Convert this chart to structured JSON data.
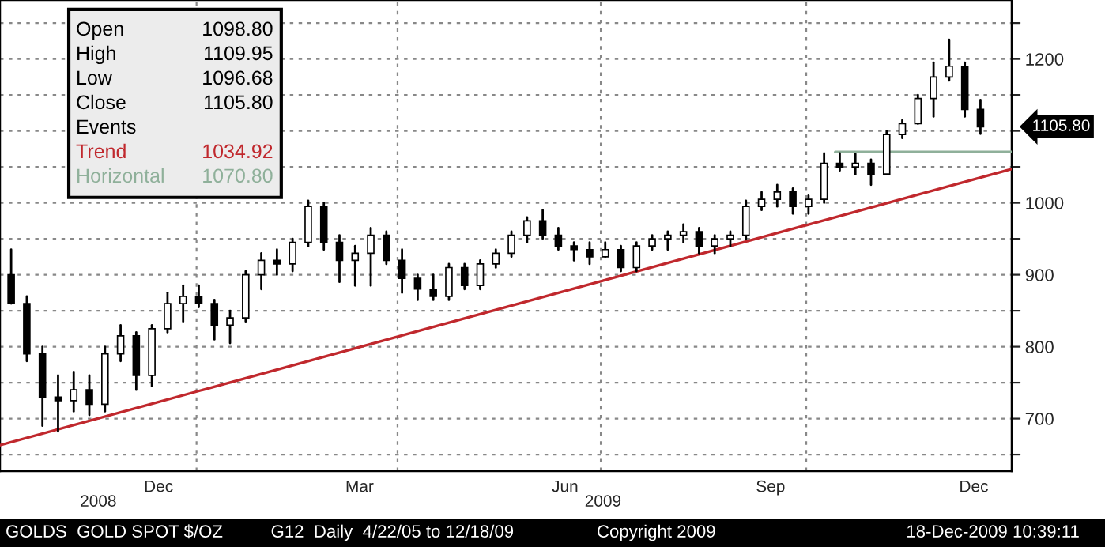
{
  "chart_data": {
    "type": "candlestick",
    "x": [
      "2008-10-10",
      "2008-10-17",
      "2008-10-24",
      "2008-10-31",
      "2008-11-07",
      "2008-11-14",
      "2008-11-21",
      "2008-11-28",
      "2008-12-05",
      "2008-12-12",
      "2008-12-19",
      "2008-12-26",
      "2009-01-02",
      "2009-01-09",
      "2009-01-16",
      "2009-01-23",
      "2009-01-30",
      "2009-02-06",
      "2009-02-13",
      "2009-02-20",
      "2009-02-27",
      "2009-03-06",
      "2009-03-13",
      "2009-03-20",
      "2009-03-27",
      "2009-04-03",
      "2009-04-10",
      "2009-04-17",
      "2009-04-24",
      "2009-05-01",
      "2009-05-08",
      "2009-05-15",
      "2009-05-22",
      "2009-05-29",
      "2009-06-05",
      "2009-06-12",
      "2009-06-19",
      "2009-06-26",
      "2009-07-03",
      "2009-07-10",
      "2009-07-17",
      "2009-07-24",
      "2009-07-31",
      "2009-08-07",
      "2009-08-14",
      "2009-08-21",
      "2009-08-28",
      "2009-09-04",
      "2009-09-11",
      "2009-09-18",
      "2009-09-25",
      "2009-10-02",
      "2009-10-09",
      "2009-10-16",
      "2009-10-23",
      "2009-10-30",
      "2009-11-06",
      "2009-11-13",
      "2009-11-20",
      "2009-11-27",
      "2009-12-04",
      "2009-12-11",
      "2009-12-18"
    ],
    "ohlc": [
      [
        900,
        935,
        860,
        860
      ],
      [
        860,
        870,
        780,
        790
      ],
      [
        790,
        800,
        690,
        730
      ],
      [
        730,
        760,
        682,
        725
      ],
      [
        725,
        765,
        710,
        740
      ],
      [
        740,
        760,
        705,
        720
      ],
      [
        720,
        800,
        710,
        790
      ],
      [
        790,
        830,
        780,
        815
      ],
      [
        815,
        820,
        740,
        760
      ],
      [
        760,
        830,
        745,
        825
      ],
      [
        825,
        875,
        820,
        860
      ],
      [
        860,
        885,
        835,
        870
      ],
      [
        870,
        885,
        855,
        860
      ],
      [
        860,
        865,
        810,
        830
      ],
      [
        830,
        850,
        805,
        840
      ],
      [
        840,
        905,
        835,
        900
      ],
      [
        900,
        930,
        880,
        920
      ],
      [
        920,
        935,
        900,
        915
      ],
      [
        915,
        950,
        905,
        945
      ],
      [
        945,
        1003,
        940,
        995
      ],
      [
        995,
        1000,
        935,
        945
      ],
      [
        945,
        955,
        890,
        920
      ],
      [
        920,
        940,
        885,
        930
      ],
      [
        930,
        965,
        885,
        955
      ],
      [
        955,
        960,
        915,
        920
      ],
      [
        920,
        935,
        875,
        895
      ],
      [
        895,
        900,
        865,
        880
      ],
      [
        880,
        900,
        865,
        870
      ],
      [
        870,
        915,
        865,
        910
      ],
      [
        910,
        915,
        880,
        885
      ],
      [
        885,
        920,
        880,
        915
      ],
      [
        915,
        935,
        910,
        930
      ],
      [
        930,
        960,
        925,
        955
      ],
      [
        955,
        980,
        945,
        975
      ],
      [
        975,
        990,
        950,
        955
      ],
      [
        955,
        965,
        935,
        940
      ],
      [
        940,
        945,
        920,
        935
      ],
      [
        935,
        945,
        915,
        925
      ],
      [
        925,
        945,
        925,
        935
      ],
      [
        935,
        940,
        905,
        910
      ],
      [
        910,
        945,
        905,
        940
      ],
      [
        940,
        955,
        935,
        950
      ],
      [
        950,
        960,
        935,
        955
      ],
      [
        955,
        970,
        945,
        960
      ],
      [
        960,
        965,
        930,
        940
      ],
      [
        940,
        955,
        930,
        950
      ],
      [
        950,
        960,
        940,
        955
      ],
      [
        955,
        1003,
        950,
        995
      ],
      [
        995,
        1015,
        990,
        1005
      ],
      [
        1005,
        1025,
        995,
        1015
      ],
      [
        1015,
        1020,
        985,
        995
      ],
      [
        995,
        1010,
        985,
        1005
      ],
      [
        1005,
        1069,
        1000,
        1055
      ],
      [
        1055,
        1069,
        1045,
        1050
      ],
      [
        1050,
        1068,
        1040,
        1055
      ],
      [
        1055,
        1060,
        1025,
        1040
      ],
      [
        1040,
        1100,
        1040,
        1095
      ],
      [
        1095,
        1115,
        1090,
        1110
      ],
      [
        1110,
        1150,
        1110,
        1145
      ],
      [
        1145,
        1195,
        1120,
        1175
      ],
      [
        1175,
        1227,
        1170,
        1190
      ],
      [
        1190,
        1195,
        1120,
        1130
      ],
      [
        1130,
        1143,
        1096,
        1105.8
      ]
    ],
    "color": "#000000",
    "series": [
      {
        "type": "line",
        "color": "#c0282d",
        "x": [
          "2008-10-05",
          "2010-01-01"
        ],
        "values": [
          663,
          1047
        ]
      },
      {
        "type": "line",
        "color": "#8fb09a",
        "x": [
          "2009-10-14",
          "2010-01-01"
        ],
        "values": [
          1070.8,
          1070.8
        ]
      }
    ],
    "xlim": [
      "2008-10-05",
      "2010-01-01"
    ],
    "xticks": [
      {
        "value": "2008-12-15",
        "label": "Dec"
      },
      {
        "value": "2009-03-15",
        "label": "Mar"
      },
      {
        "value": "2009-06-15",
        "label": "Jun"
      },
      {
        "value": "2009-09-15",
        "label": "Sep"
      },
      {
        "value": "2009-12-15",
        "label": "Dec"
      }
    ],
    "x2lim": [
      "2008-10-05",
      "2010-01-01"
    ],
    "x2ticks": [
      {
        "value": "2008-11-18",
        "label": "2008"
      },
      {
        "value": "2009-07-02",
        "label": "2009"
      }
    ],
    "ylim": [
      627,
      1282
    ],
    "yticks": [
      {
        "value": 650,
        "label": null
      },
      700,
      {
        "value": 750,
        "label": null
      },
      800,
      {
        "value": 850,
        "label": null
      },
      900,
      {
        "value": 950,
        "label": null
      },
      1000,
      {
        "value": 1050,
        "label": null
      },
      {
        "value": 1100,
        "label": null
      },
      {
        "value": 1150,
        "label": null
      },
      1200,
      {
        "value": 1250,
        "label": null
      }
    ],
    "grid": "y",
    "ref_lines": [
      {
        "axis": "x",
        "value": "2009-01-01",
        "color": "#888888",
        "line_style": "dotted"
      },
      {
        "axis": "x",
        "value": "2009-04-01",
        "color": "#888888",
        "line_style": "dotted"
      },
      {
        "axis": "x",
        "value": "2009-07-01",
        "color": "#888888",
        "line_style": "dotted"
      },
      {
        "axis": "x",
        "value": "2009-10-01",
        "color": "#888888",
        "line_style": "dotted"
      }
    ],
    "annotations": [
      "Open",
      "1098.80",
      "High",
      "1109.95",
      "Low",
      "1096.68",
      "Close",
      "1105.80",
      "Events",
      "Trend",
      "1034.92",
      "Horizontal",
      "1070.80",
      "1105.80",
      "GOLDS  GOLD SPOT $/OZ",
      "G12  Daily  4/22/05 to 12/18/09",
      "Copyright 2009",
      "18-Dec-2009 10:39:11"
    ]
  }
}
